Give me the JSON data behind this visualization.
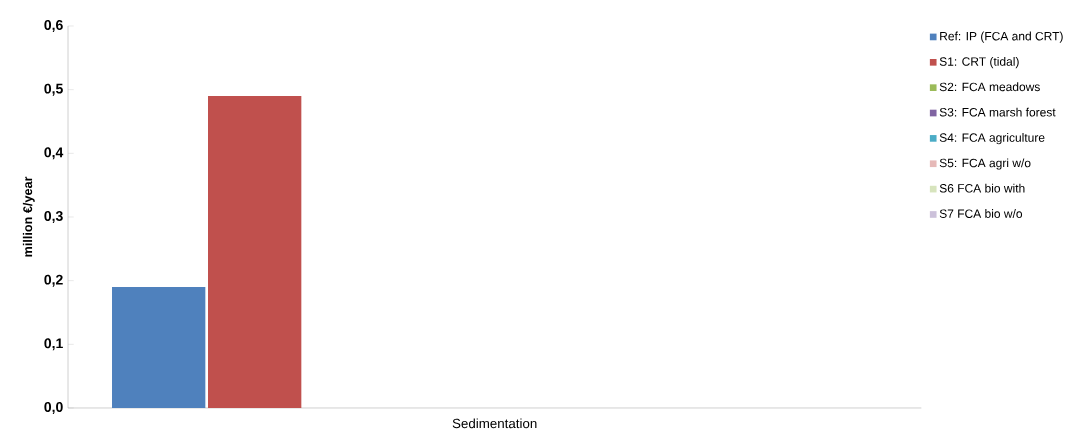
{
  "chart_data": {
    "type": "bar",
    "ylabel": "million €/year",
    "categories": [
      "Sedimentation"
    ],
    "series": [
      {
        "name": "Ref: IP (FCA and CRT)",
        "color": "#4f81bd",
        "values": [
          0.19
        ]
      },
      {
        "name": "S1: CRT (tidal)",
        "color": "#c0504d",
        "values": [
          0.49
        ]
      },
      {
        "name": "S2: FCA meadows",
        "color": "#9bbb59",
        "values": [
          0
        ]
      },
      {
        "name": "S3: FCA marsh forest",
        "color": "#8064a2",
        "values": [
          0
        ]
      },
      {
        "name": "S4: FCA agriculture",
        "color": "#4bacc6",
        "values": [
          0
        ]
      },
      {
        "name": "S5: FCA agri w/o",
        "color": "#e6b9b8",
        "values": [
          0
        ]
      },
      {
        "name": "S6 FCA bio with",
        "color": "#d7e4bd",
        "values": [
          0
        ]
      },
      {
        "name": "S7 FCA bio w/o",
        "color": "#ccc1da",
        "values": [
          0
        ]
      }
    ],
    "ylim": [
      0,
      0.6
    ],
    "yticks": [
      {
        "value": 0,
        "label": "0,0"
      },
      {
        "value": 0.1,
        "label": "0,1"
      },
      {
        "value": 0.2,
        "label": "0,2"
      },
      {
        "value": 0.3,
        "label": "0,3"
      },
      {
        "value": 0.4,
        "label": "0,4"
      },
      {
        "value": 0.5,
        "label": "0,5"
      },
      {
        "value": 0.6,
        "label": "0,6"
      }
    ],
    "grid": false,
    "legend": "right"
  }
}
